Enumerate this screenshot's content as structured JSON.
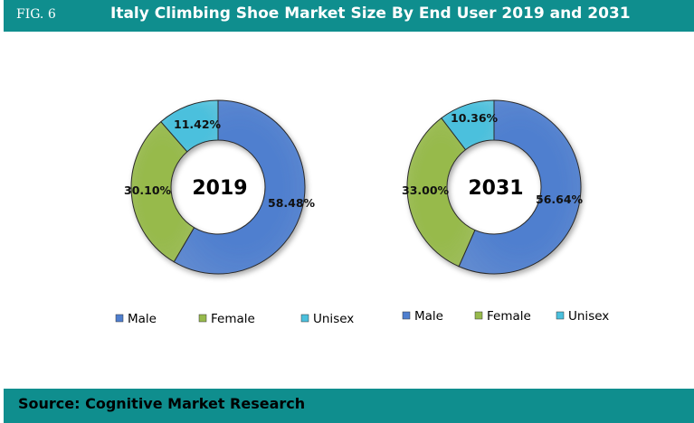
{
  "header": {
    "fig_label": "FIG. 6",
    "title": "Italy Climbing Shoe Market Size By End User 2019 and 2031"
  },
  "footer": {
    "source": "Source: Cognitive Market Research"
  },
  "colors": {
    "Male": "#4f7fcf",
    "Female": "#97ba4c",
    "Unisex": "#4bc0dd",
    "bar": "#0f8e8e"
  },
  "chart_data": [
    {
      "type": "pie",
      "center_label": "2019",
      "categories": [
        "Male",
        "Female",
        "Unisex"
      ],
      "values": [
        58.48,
        30.1,
        11.42
      ],
      "labels": [
        "58.48%",
        "30.10%",
        "11.42%"
      ],
      "legend": [
        "Male",
        "Female",
        "Unisex"
      ]
    },
    {
      "type": "pie",
      "center_label": "2031",
      "categories": [
        "Male",
        "Female",
        "Unisex"
      ],
      "values": [
        56.64,
        33.0,
        10.36
      ],
      "labels": [
        "56.64%",
        "33.00%",
        "10.36%"
      ],
      "legend": [
        "Male",
        "Female",
        "Unisex"
      ]
    }
  ]
}
